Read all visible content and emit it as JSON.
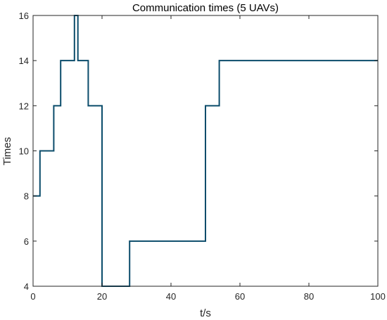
{
  "chart_data": {
    "type": "line",
    "step": "post",
    "title": "Communication times (5 UAVs)",
    "xlabel": "t/s",
    "ylabel": "Times",
    "xlim": [
      0,
      100
    ],
    "ylim": [
      4,
      16
    ],
    "xticks": [
      0,
      20,
      40,
      60,
      80,
      100
    ],
    "yticks": [
      4,
      6,
      8,
      10,
      12,
      14,
      16
    ],
    "grid": false,
    "box": true,
    "series": [
      {
        "color": "#0b4c6b",
        "x": [
          0,
          2,
          6,
          8,
          12,
          13,
          16,
          20,
          28,
          50,
          54,
          100
        ],
        "y": [
          8,
          10,
          12,
          14,
          16,
          14,
          12,
          4,
          6,
          12,
          14,
          14
        ]
      }
    ]
  }
}
